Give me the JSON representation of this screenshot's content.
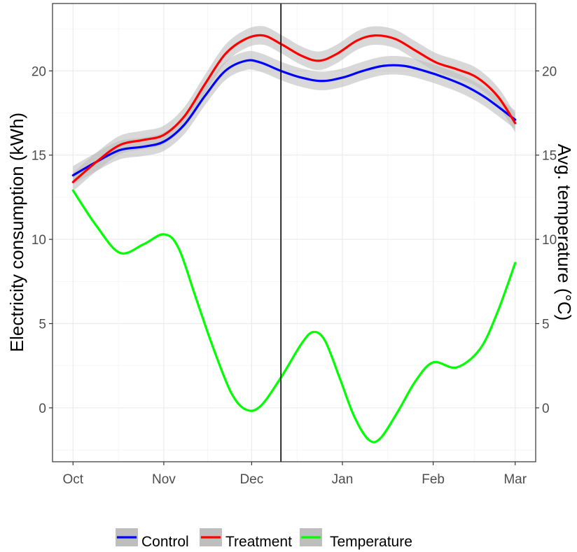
{
  "chart_data": {
    "type": "line",
    "ylabel": "Electricity consumption (kWh)",
    "y2label": "Avg. temperature (°C)",
    "x_ticks": [
      "Oct",
      "Nov",
      "Dec",
      "Jan",
      "Feb",
      "Mar"
    ],
    "x_tick_days": [
      0,
      31,
      61,
      92,
      123,
      151
    ],
    "xlim": [
      -7,
      158
    ],
    "ylim": [
      -3.2,
      24
    ],
    "y_ticks": [
      0,
      5,
      10,
      15,
      20
    ],
    "y2_ticks": [
      0,
      5,
      10,
      15,
      20
    ],
    "vline_day": 71,
    "grid": true,
    "legend_position": "bottom",
    "colors": {
      "control": "#0000ff",
      "treatment": "#ff0000",
      "temperature": "#00ff00",
      "band": "#bebebe",
      "vline": "#000000"
    },
    "series": [
      {
        "name": "Control",
        "color": "#0000ff",
        "band": true,
        "band_halfwidth": 0.55,
        "points": [
          [
            0,
            13.8
          ],
          [
            8,
            14.6
          ],
          [
            16,
            15.3
          ],
          [
            24,
            15.5
          ],
          [
            31,
            15.8
          ],
          [
            38,
            16.8
          ],
          [
            45,
            18.5
          ],
          [
            52,
            20.0
          ],
          [
            59,
            20.6
          ],
          [
            64,
            20.5
          ],
          [
            71,
            20.0
          ],
          [
            78,
            19.6
          ],
          [
            85,
            19.4
          ],
          [
            92,
            19.6
          ],
          [
            99,
            20.0
          ],
          [
            106,
            20.3
          ],
          [
            113,
            20.3
          ],
          [
            120,
            20.0
          ],
          [
            127,
            19.6
          ],
          [
            134,
            19.1
          ],
          [
            141,
            18.4
          ],
          [
            151,
            17.1
          ]
        ]
      },
      {
        "name": "Treatment",
        "color": "#ff0000",
        "band": true,
        "band_halfwidth": 0.55,
        "points": [
          [
            0,
            13.4
          ],
          [
            8,
            14.6
          ],
          [
            16,
            15.6
          ],
          [
            24,
            15.9
          ],
          [
            31,
            16.2
          ],
          [
            38,
            17.3
          ],
          [
            45,
            19.2
          ],
          [
            52,
            21.0
          ],
          [
            59,
            21.9
          ],
          [
            65,
            22.1
          ],
          [
            71,
            21.6
          ],
          [
            78,
            20.9
          ],
          [
            84,
            20.6
          ],
          [
            90,
            21.0
          ],
          [
            97,
            21.8
          ],
          [
            103,
            22.1
          ],
          [
            110,
            21.9
          ],
          [
            117,
            21.2
          ],
          [
            124,
            20.5
          ],
          [
            131,
            20.1
          ],
          [
            138,
            19.6
          ],
          [
            145,
            18.5
          ],
          [
            151,
            16.9
          ]
        ]
      },
      {
        "name": "Temperature",
        "color": "#00ff00",
        "band": false,
        "points": [
          [
            0,
            12.9
          ],
          [
            8,
            10.8
          ],
          [
            16,
            9.2
          ],
          [
            24,
            9.7
          ],
          [
            31,
            10.3
          ],
          [
            36,
            9.5
          ],
          [
            42,
            6.5
          ],
          [
            48,
            3.5
          ],
          [
            54,
            0.9
          ],
          [
            59,
            -0.1
          ],
          [
            64,
            0.1
          ],
          [
            71,
            1.8
          ],
          [
            78,
            3.8
          ],
          [
            82,
            4.5
          ],
          [
            86,
            4.0
          ],
          [
            91,
            1.8
          ],
          [
            96,
            -0.5
          ],
          [
            101,
            -1.9
          ],
          [
            105,
            -1.8
          ],
          [
            111,
            -0.2
          ],
          [
            117,
            1.6
          ],
          [
            123,
            2.7
          ],
          [
            131,
            2.4
          ],
          [
            139,
            3.5
          ],
          [
            145,
            5.7
          ],
          [
            151,
            8.6
          ]
        ]
      }
    ]
  }
}
